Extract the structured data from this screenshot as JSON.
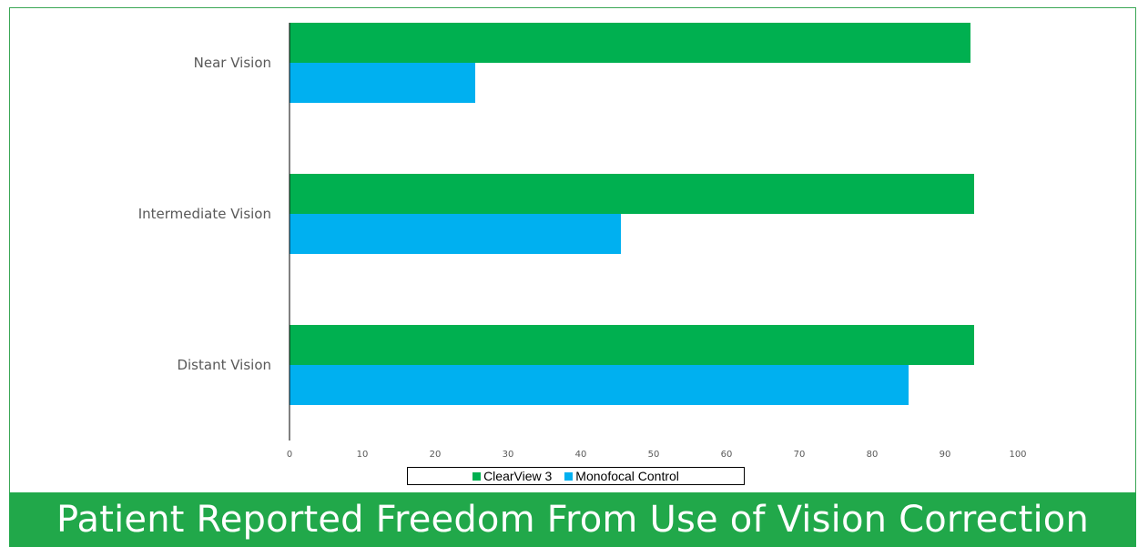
{
  "chart_data": {
    "type": "bar",
    "orientation": "horizontal",
    "title": "Patient Reported Freedom From Use of Vision Correction",
    "categories": [
      "Near Vision",
      "Intermediate Vision",
      "Distant Vision"
    ],
    "series": [
      {
        "name": "ClearView 3",
        "values": [
          93.5,
          94,
          94
        ],
        "color": "#00b050"
      },
      {
        "name": "Monofocal Control",
        "values": [
          25.5,
          45.5,
          85
        ],
        "color": "#00b0f0"
      }
    ],
    "xlim": [
      0,
      100
    ],
    "xticks": [
      "0",
      "10",
      "20",
      "30",
      "40",
      "50",
      "60",
      "70",
      "80",
      "90",
      "100"
    ],
    "grid": false,
    "legend_position": "bottom"
  },
  "colors": {
    "banner": "#21a84a",
    "border": "#3aa655"
  }
}
